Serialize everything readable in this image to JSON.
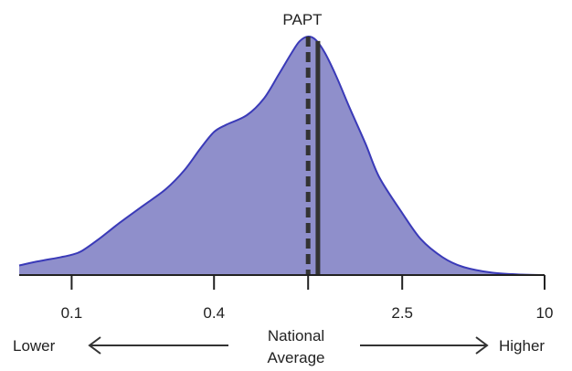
{
  "chart_data": {
    "type": "area",
    "title": "PAPT",
    "x_scale": "log",
    "xlim": [
      0.06,
      10
    ],
    "ylim": [
      0,
      1
    ],
    "x": [
      0.06,
      0.07,
      0.09,
      0.1,
      0.11,
      0.13,
      0.16,
      0.2,
      0.25,
      0.3,
      0.35,
      0.4,
      0.45,
      0.55,
      0.65,
      0.75,
      0.85,
      0.92,
      1.0,
      1.08,
      1.18,
      1.32,
      1.5,
      1.75,
      2.0,
      2.5,
      3.0,
      3.7,
      4.5,
      6.0,
      8.0,
      10.0
    ],
    "y": [
      0.04,
      0.055,
      0.075,
      0.085,
      0.1,
      0.15,
      0.22,
      0.29,
      0.36,
      0.44,
      0.53,
      0.6,
      0.63,
      0.67,
      0.74,
      0.84,
      0.93,
      0.98,
      1.0,
      0.985,
      0.93,
      0.83,
      0.7,
      0.55,
      0.41,
      0.26,
      0.15,
      0.075,
      0.035,
      0.01,
      0.002,
      0.0
    ],
    "national_average_x": 1.0,
    "papt_x": 1.1,
    "x_ticks": [
      {
        "value": 0.1,
        "label": "0.1"
      },
      {
        "value": 0.4,
        "label": "0.4"
      },
      {
        "value": 1.0,
        "label": ""
      },
      {
        "value": 2.5,
        "label": "2.5"
      },
      {
        "value": 10,
        "label": "10"
      }
    ],
    "fill_color": "#8f8fcb",
    "line_color": "#3a3ab8",
    "marker_color": "#333333"
  },
  "annotations": {
    "lower": "Lower",
    "higher": "Higher",
    "national_line1": "National",
    "national_line2": "Average"
  }
}
